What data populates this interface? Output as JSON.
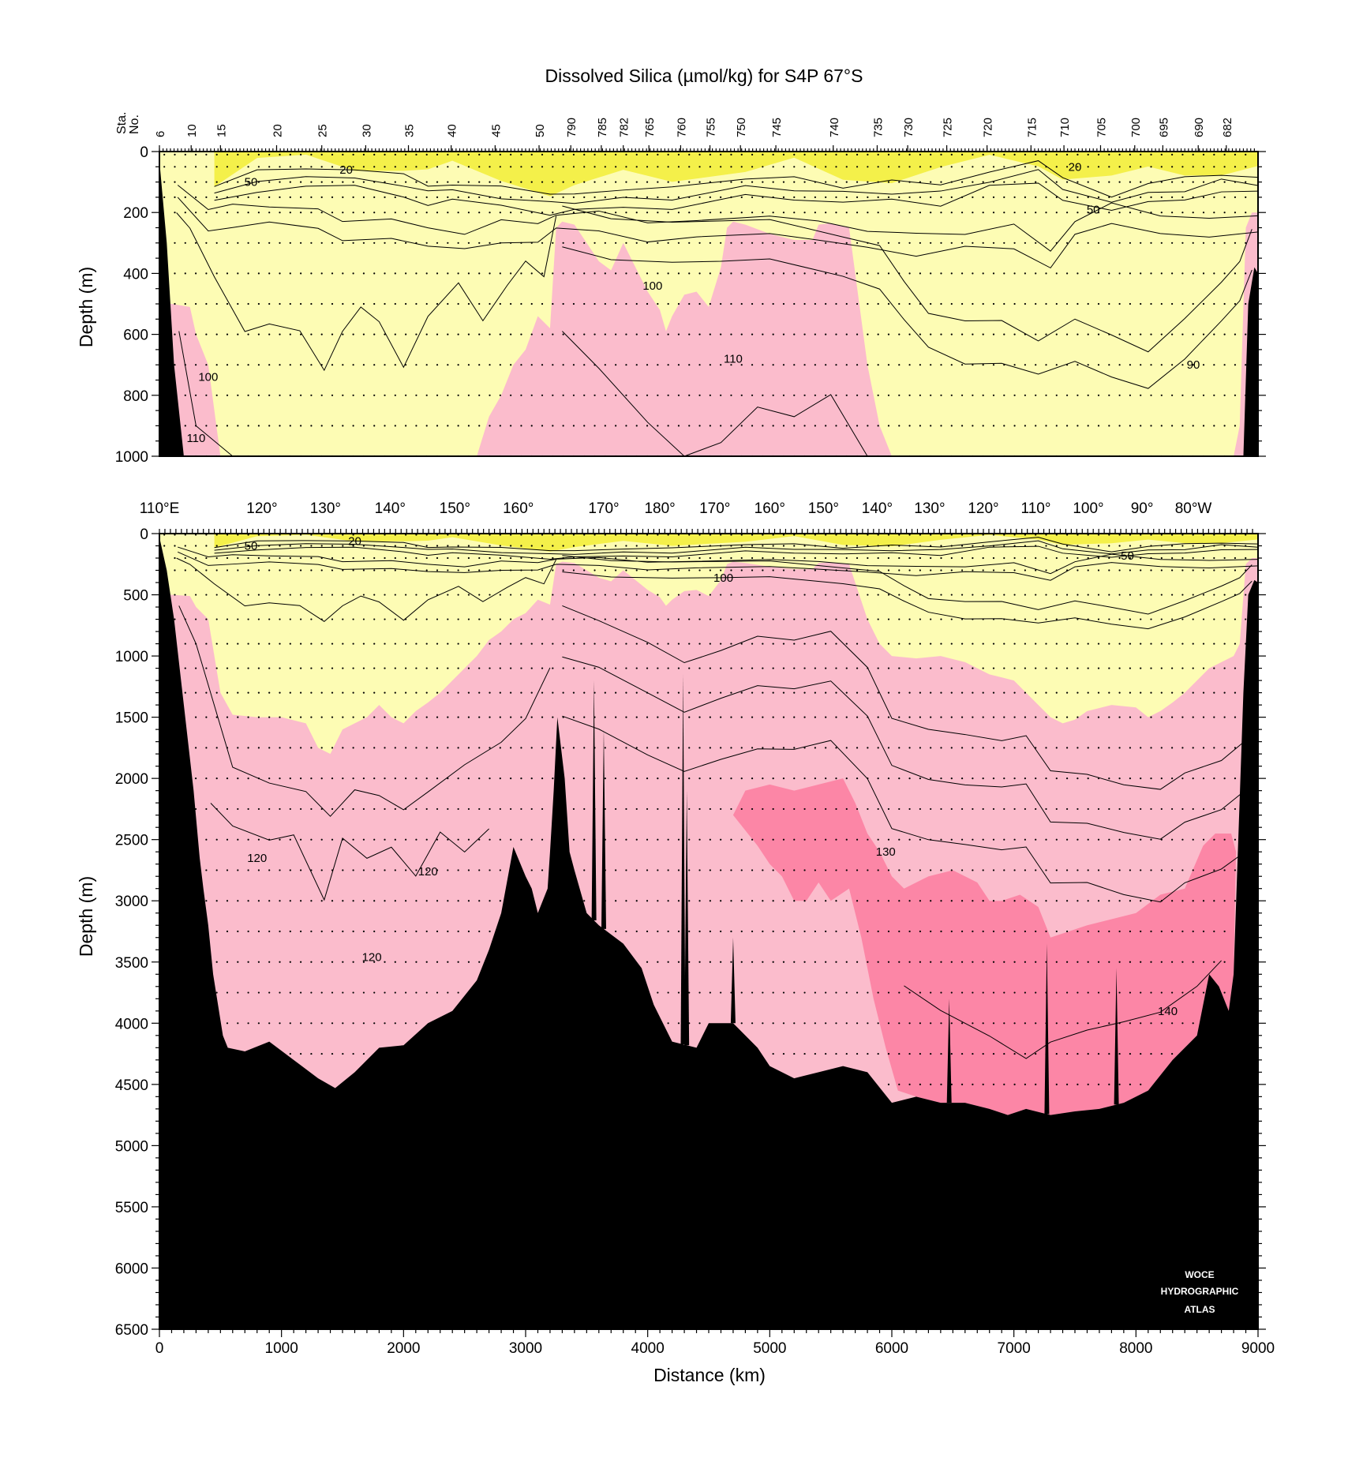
{
  "chart_data": {
    "type": "heatmap",
    "title": "Dissolved Silica (µmol/kg) for S4P 67°S",
    "xlabel": "Distance (km)",
    "ylabel": "Depth (m)",
    "station_axis_label": [
      "Sta.",
      "No."
    ],
    "colors": {
      "band_lt50": "#f4f04a",
      "band_50_100": "#fdfcb4",
      "band_100_110": "#fbc6d2",
      "band_110_130": "#fbbccc",
      "band_gt130": "#fc86a6",
      "bottom": "#000000"
    },
    "watermark": [
      "WOCE",
      "HYDROGRAPHIC",
      "ATLAS"
    ],
    "panels": [
      {
        "id": "upper",
        "depth_range": [
          0,
          1000
        ],
        "depth_ticks": [
          0,
          200,
          400,
          600,
          800,
          1000
        ],
        "station_ticks": [
          {
            "label": "6",
            "km": 0
          },
          {
            "label": "10",
            "km": 260
          },
          {
            "label": "15",
            "km": 500
          },
          {
            "label": "20",
            "km": 960
          },
          {
            "label": "25",
            "km": 1330
          },
          {
            "label": "30",
            "km": 1690
          },
          {
            "label": "35",
            "km": 2040
          },
          {
            "label": "40",
            "km": 2390
          },
          {
            "label": "45",
            "km": 2750
          },
          {
            "label": "50",
            "km": 3110
          },
          {
            "label": "790",
            "km": 3370
          },
          {
            "label": "785",
            "km": 3620
          },
          {
            "label": "782",
            "km": 3800
          },
          {
            "label": "765",
            "km": 4010
          },
          {
            "label": "760",
            "km": 4270
          },
          {
            "label": "755",
            "km": 4510
          },
          {
            "label": "750",
            "km": 4760
          },
          {
            "label": "745",
            "km": 5050
          },
          {
            "label": "740",
            "km": 5520
          },
          {
            "label": "735",
            "km": 5880
          },
          {
            "label": "730",
            "km": 6130
          },
          {
            "label": "725",
            "km": 6450
          },
          {
            "label": "720",
            "km": 6780
          },
          {
            "label": "715",
            "km": 7140
          },
          {
            "label": "710",
            "km": 7410
          },
          {
            "label": "705",
            "km": 7710
          },
          {
            "label": "700",
            "km": 7990
          },
          {
            "label": "695",
            "km": 8220
          },
          {
            "label": "690",
            "km": 8510
          },
          {
            "label": "682",
            "km": 8740
          }
        ],
        "contour_labels": [
          {
            "text": "20",
            "km": 1530,
            "depth": 60
          },
          {
            "text": "50",
            "km": 750,
            "depth": 100
          },
          {
            "text": "100",
            "km": 400,
            "depth": 740
          },
          {
            "text": "110",
            "km": 300,
            "depth": 940
          },
          {
            "text": "100",
            "km": 4040,
            "depth": 440
          },
          {
            "text": "110",
            "km": 4700,
            "depth": 680
          },
          {
            "text": "20",
            "km": 7500,
            "depth": 50
          },
          {
            "text": "50",
            "km": 7650,
            "depth": 190
          },
          {
            "text": "90",
            "km": 8470,
            "depth": 700
          }
        ]
      },
      {
        "id": "lower",
        "depth_range": [
          0,
          6500
        ],
        "depth_ticks": [
          0,
          500,
          1000,
          1500,
          2000,
          2500,
          3000,
          3500,
          4000,
          4500,
          5000,
          5500,
          6000,
          6500
        ],
        "distance_ticks": [
          0,
          1000,
          2000,
          3000,
          4000,
          5000,
          6000,
          7000,
          8000,
          9000
        ],
        "longitude_ticks": [
          {
            "label": "110°E",
            "km": 0
          },
          {
            "label": "120°",
            "km": 840
          },
          {
            "label": "130°",
            "km": 1360
          },
          {
            "label": "140°",
            "km": 1890
          },
          {
            "label": "150°",
            "km": 2420
          },
          {
            "label": "160°",
            "km": 2940
          },
          {
            "label": "170°",
            "km": 3640
          },
          {
            "label": "180°",
            "km": 4100
          },
          {
            "label": "170°",
            "km": 4550
          },
          {
            "label": "160°",
            "km": 5000
          },
          {
            "label": "150°",
            "km": 5440
          },
          {
            "label": "140°",
            "km": 5880
          },
          {
            "label": "130°",
            "km": 6310
          },
          {
            "label": "120°",
            "km": 6750
          },
          {
            "label": "110°",
            "km": 7180
          },
          {
            "label": "100°",
            "km": 7610
          },
          {
            "label": "90°",
            "km": 8050
          },
          {
            "label": "80°W",
            "km": 8470
          }
        ],
        "contour_labels": [
          {
            "text": "20",
            "km": 1600,
            "depth": 60
          },
          {
            "text": "50",
            "km": 750,
            "depth": 100
          },
          {
            "text": "100",
            "km": 4620,
            "depth": 360
          },
          {
            "text": "50",
            "km": 7930,
            "depth": 180
          },
          {
            "text": "120",
            "km": 800,
            "depth": 2650
          },
          {
            "text": "120",
            "km": 2200,
            "depth": 2760
          },
          {
            "text": "120",
            "km": 1740,
            "depth": 3460
          },
          {
            "text": "130",
            "km": 5950,
            "depth": 2600
          },
          {
            "text": "140",
            "km": 8260,
            "depth": 3900
          }
        ]
      }
    ]
  }
}
